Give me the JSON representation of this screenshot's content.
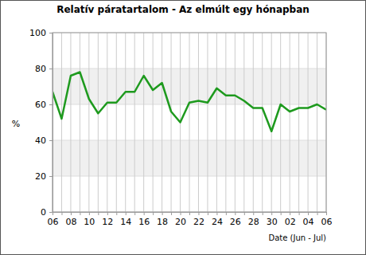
{
  "chart_data": {
    "type": "line",
    "title": "Relatív páratartalom - Az elmúlt egy hónapban",
    "xlabel": "Date (Jun - Jul)",
    "ylabel": "%",
    "categories": [
      "06",
      null,
      "08",
      null,
      "10",
      null,
      "12",
      null,
      "14",
      null,
      "16",
      null,
      "18",
      null,
      "20",
      null,
      "22",
      null,
      "24",
      null,
      "26",
      null,
      "28",
      null,
      "30",
      null,
      "02",
      null,
      "04",
      null,
      "06"
    ],
    "values": [
      67,
      52,
      76,
      78,
      63,
      55,
      61,
      61,
      67,
      67,
      76,
      68,
      72,
      56,
      50,
      61,
      62,
      61,
      69,
      65,
      65,
      62,
      58,
      58,
      45,
      60,
      56,
      58,
      58,
      60,
      57
    ],
    "color": "#1e9a1e",
    "ylim": [
      0,
      100
    ],
    "yticks": [
      0,
      20,
      40,
      60,
      80,
      100
    ],
    "grid": true
  }
}
